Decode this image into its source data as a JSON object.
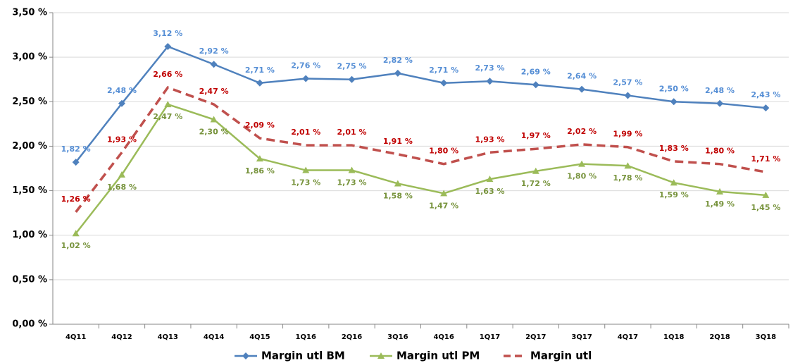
{
  "chart_data": {
    "type": "line",
    "categories": [
      "4Q11",
      "4Q12",
      "4Q13",
      "4Q14",
      "4Q15",
      "1Q16",
      "2Q16",
      "3Q16",
      "4Q16",
      "1Q17",
      "2Q17",
      "3Q17",
      "4Q17",
      "1Q18",
      "2Q18",
      "3Q18"
    ],
    "series": [
      {
        "name": "Margin utl BM",
        "color": "#4f81bd",
        "label_color": "#558ed5",
        "marker": "diamond",
        "dash": false,
        "label_position": "above",
        "values": [
          1.82,
          2.48,
          3.12,
          2.92,
          2.71,
          2.76,
          2.75,
          2.82,
          2.71,
          2.73,
          2.69,
          2.64,
          2.57,
          2.5,
          2.48,
          2.43
        ],
        "value_labels": [
          "1,82 %",
          "2,48 %",
          "3,12 %",
          "2,92 %",
          "2,71 %",
          "2,76 %",
          "2,75 %",
          "2,82 %",
          "2,71 %",
          "2,73 %",
          "2,69 %",
          "2,64 %",
          "2,57 %",
          "2,50 %",
          "2,48 %",
          "2,43 %"
        ]
      },
      {
        "name": "Margin utl PM",
        "color": "#9bbb59",
        "label_color": "#77933c",
        "marker": "triangle",
        "dash": false,
        "label_position": "below",
        "values": [
          1.02,
          1.68,
          2.47,
          2.3,
          1.86,
          1.73,
          1.73,
          1.58,
          1.47,
          1.63,
          1.72,
          1.8,
          1.78,
          1.59,
          1.49,
          1.45
        ],
        "value_labels": [
          "1,02 %",
          "1,68 %",
          "2,47 %",
          "2,30 %",
          "1,86 %",
          "1,73 %",
          "1,73 %",
          "1,58 %",
          "1,47 %",
          "1,63 %",
          "1,72 %",
          "1,80 %",
          "1,78 %",
          "1,59 %",
          "1,49 %",
          "1,45 %"
        ]
      },
      {
        "name": "Margin utl",
        "color": "#c0504d",
        "label_color": "#c00000",
        "marker": "none",
        "dash": true,
        "label_position": "above",
        "values": [
          1.26,
          1.93,
          2.66,
          2.47,
          2.09,
          2.01,
          2.01,
          1.91,
          1.8,
          1.93,
          1.97,
          2.02,
          1.99,
          1.83,
          1.8,
          1.71
        ],
        "value_labels": [
          "1,26 %",
          "1,93 %",
          "2,66 %",
          "2,47 %",
          "2,09 %",
          "2,01 %",
          "2,01 %",
          "1,91 %",
          "1,80 %",
          "1,93 %",
          "1,97 %",
          "2,02 %",
          "1,99 %",
          "1,83 %",
          "1,80 %",
          "1,71 %"
        ]
      }
    ],
    "ylim": [
      0,
      3.5
    ],
    "yticks": [
      {
        "value": 0,
        "label": "0,00 %"
      },
      {
        "value": 0.5,
        "label": "0,50 %"
      },
      {
        "value": 1,
        "label": "1,00 %"
      },
      {
        "value": 1.5,
        "label": "1,50 %"
      },
      {
        "value": 2,
        "label": "2,00 %"
      },
      {
        "value": 2.5,
        "label": "2,50 %"
      },
      {
        "value": 3,
        "label": "3,00 %"
      },
      {
        "value": 3.5,
        "label": "3,50 %"
      }
    ],
    "grid": true,
    "legend": "bottom"
  }
}
